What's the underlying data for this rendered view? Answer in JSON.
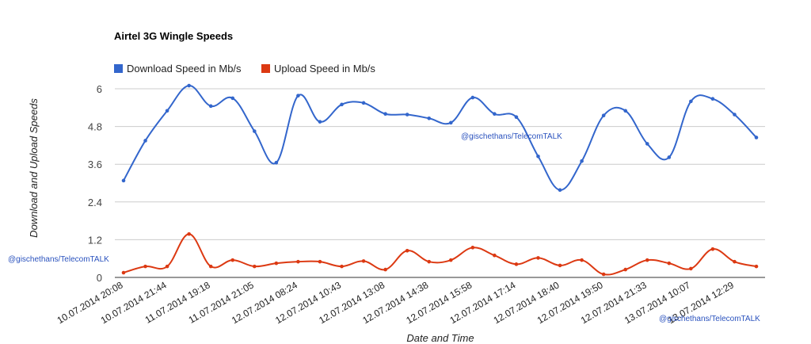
{
  "chart_data": {
    "type": "line",
    "title": "Airtel 3G Wingle Speeds",
    "xlabel": "Date and Time",
    "ylabel": "Download and Upload Speeds",
    "ylim": [
      0,
      6
    ],
    "yticks": [
      "0",
      "1.2",
      "2.4",
      "3.6",
      "4.8",
      "6"
    ],
    "ytick_values": [
      0,
      1.2,
      2.4,
      3.6,
      4.8,
      6
    ],
    "grid": true,
    "legend_position": "top-left",
    "x_labels": [
      "10.07.2014 20:08",
      "10.07.2014 21:44",
      "11.07.2014 19:18",
      "11.07.2014 21:05",
      "12.07.2014 08:24",
      "12.07.2014 10:43",
      "12.07.2014 13:08",
      "12.07.2014 14:38",
      "12.07.2014 15:58",
      "12.07.2014 17:14",
      "12.07.2014 18:40",
      "12.07.2014 19:50",
      "12.07.2014 21:33",
      "13.07.2014 10:07",
      "13.07.2014 12:29"
    ],
    "series": [
      {
        "name": "Download Speed in Mb/s",
        "color": "#3366cc",
        "values": [
          3.08,
          4.35,
          5.3,
          6.1,
          5.45,
          5.7,
          4.65,
          3.65,
          5.78,
          4.95,
          5.5,
          5.55,
          5.2,
          5.18,
          5.06,
          4.92,
          5.72,
          5.2,
          5.1,
          3.85,
          2.78,
          3.7,
          5.15,
          5.3,
          4.25,
          3.82,
          5.6,
          5.68,
          5.18,
          4.45
        ]
      },
      {
        "name": "Upload Speed in Mb/s",
        "color": "#dc3912",
        "values": [
          0.15,
          0.35,
          0.35,
          1.38,
          0.35,
          0.55,
          0.35,
          0.45,
          0.5,
          0.5,
          0.35,
          0.52,
          0.25,
          0.85,
          0.5,
          0.55,
          0.95,
          0.7,
          0.42,
          0.62,
          0.38,
          0.55,
          0.1,
          0.25,
          0.55,
          0.45,
          0.28,
          0.9,
          0.5,
          0.35
        ]
      }
    ],
    "watermarks": [
      "@gischethans/TelecomTALK",
      "@gischethans/TelecomTALK",
      "@gischethans/TelecomTALK"
    ]
  }
}
